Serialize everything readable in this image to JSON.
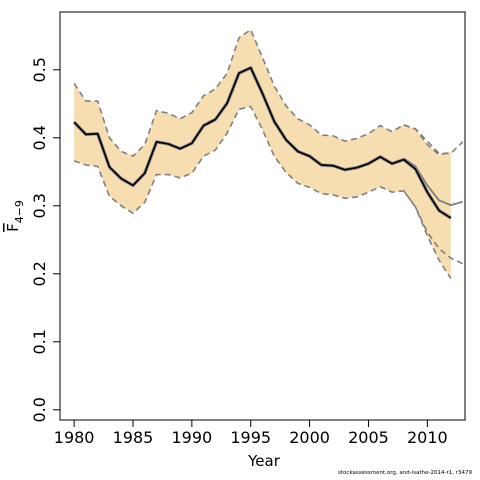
{
  "chart_data": {
    "type": "line",
    "xlabel": "Year",
    "ylabel": {
      "base": "F",
      "subscript": "4−9"
    },
    "xlim": [
      1978.8,
      2013.2
    ],
    "ylim": [
      -0.015,
      0.585
    ],
    "xticks": [
      1980,
      1985,
      1990,
      1995,
      2000,
      2005,
      2010
    ],
    "yticks": [
      "0.0",
      "0.1",
      "0.2",
      "0.3",
      "0.4",
      "0.5"
    ],
    "grid": false,
    "band_color": "#f6deb1",
    "x": [
      1980,
      1981,
      1982,
      1983,
      1984,
      1985,
      1986,
      1987,
      1988,
      1989,
      1990,
      1991,
      1992,
      1993,
      1994,
      1995,
      1996,
      1997,
      1998,
      1999,
      2000,
      2001,
      2002,
      2003,
      2004,
      2005,
      2006,
      2007,
      2008,
      2009,
      2010,
      2011,
      2012
    ],
    "series": [
      {
        "role": "estimate",
        "color": "#000000",
        "values": [
          0.423,
          0.405,
          0.406,
          0.357,
          0.34,
          0.33,
          0.348,
          0.394,
          0.391,
          0.384,
          0.392,
          0.418,
          0.427,
          0.451,
          0.495,
          0.503,
          0.465,
          0.424,
          0.397,
          0.38,
          0.373,
          0.36,
          0.359,
          0.353,
          0.356,
          0.362,
          0.372,
          0.362,
          0.368,
          0.354,
          0.32,
          0.293,
          0.282
        ]
      },
      {
        "role": "upper",
        "color": "#7f7f7f",
        "values": [
          0.48,
          0.454,
          0.454,
          0.4,
          0.38,
          0.373,
          0.39,
          0.44,
          0.436,
          0.428,
          0.437,
          0.462,
          0.472,
          0.495,
          0.547,
          0.559,
          0.518,
          0.476,
          0.447,
          0.428,
          0.419,
          0.404,
          0.403,
          0.395,
          0.399,
          0.406,
          0.418,
          0.409,
          0.419,
          0.413,
          0.39,
          0.375,
          0.379
        ]
      },
      {
        "role": "lower",
        "color": "#7f7f7f",
        "values": [
          0.366,
          0.36,
          0.358,
          0.314,
          0.3,
          0.289,
          0.305,
          0.346,
          0.346,
          0.341,
          0.348,
          0.373,
          0.382,
          0.407,
          0.442,
          0.446,
          0.412,
          0.373,
          0.349,
          0.333,
          0.327,
          0.318,
          0.316,
          0.311,
          0.313,
          0.32,
          0.328,
          0.32,
          0.322,
          0.298,
          0.256,
          0.22,
          0.193
        ]
      },
      {
        "role": "estimate-extension",
        "color": "#7f7f7f",
        "x": [
          2008,
          2009,
          2010,
          2011,
          2012,
          2013
        ],
        "values": [
          0.37,
          0.358,
          0.33,
          0.308,
          0.301,
          0.306
        ]
      },
      {
        "role": "upper-extension",
        "color": "#7f7f7f",
        "x": [
          2008,
          2009,
          2010,
          2011,
          2012,
          2013
        ],
        "values": [
          0.419,
          0.413,
          0.395,
          0.377,
          0.377,
          0.394
        ]
      },
      {
        "role": "lower-extension",
        "color": "#7f7f7f",
        "x": [
          2008,
          2009,
          2010,
          2011,
          2012,
          2013
        ],
        "values": [
          0.322,
          0.298,
          0.261,
          0.237,
          0.223,
          0.215
        ]
      }
    ]
  },
  "footer": "stockassessment.org, and-lsathe-2014-r1, r3479"
}
